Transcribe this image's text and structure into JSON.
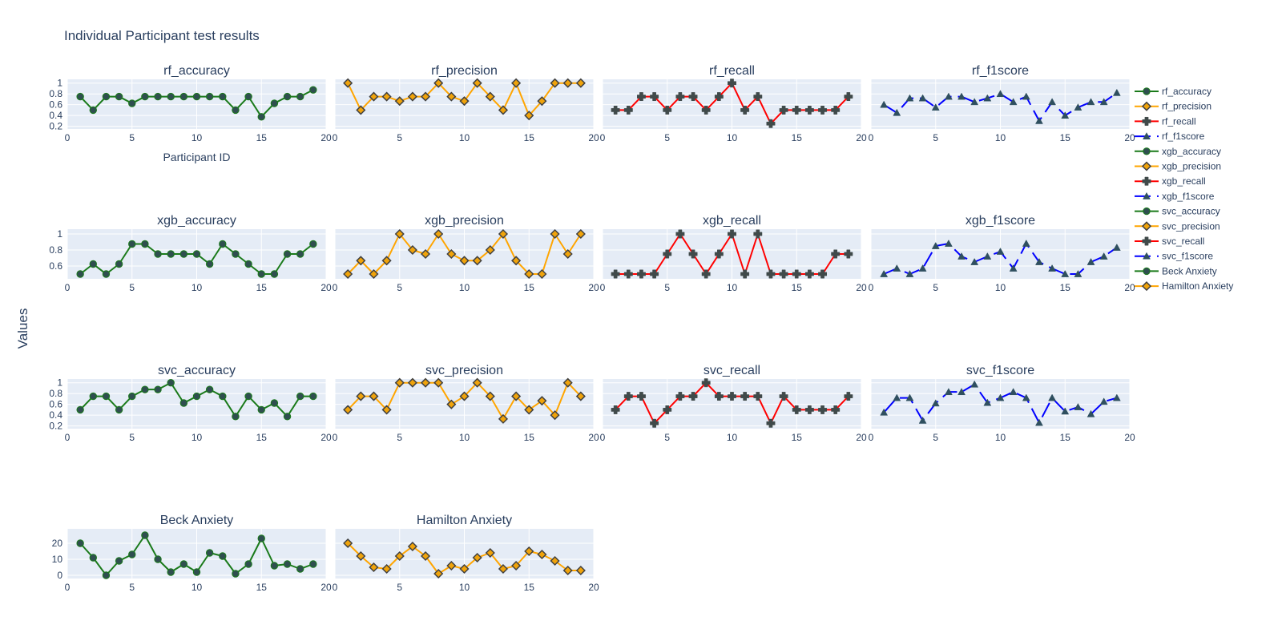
{
  "chart_data": {
    "type": "line",
    "title": "Individual Participant test results",
    "ylabel": "Values",
    "xlabel_first_panel": "Participant ID",
    "x": [
      1,
      2,
      3,
      4,
      5,
      6,
      7,
      8,
      9,
      10,
      11,
      12,
      13,
      14,
      15,
      16,
      17,
      18,
      19
    ],
    "xlim": [
      0,
      20
    ],
    "x_ticks": [
      0,
      5,
      10,
      15,
      20
    ],
    "grid": true,
    "legend_position": "right",
    "colors": {
      "plot_bg": "#e5ecf6",
      "grid": "#ffffff",
      "text": "#2a3f5f",
      "marker_fill": "#2f4f4f",
      "accuracy": "#1a7a1a",
      "precision": "#ffa500",
      "recall": "#ff0000",
      "f1score": "#0000ff"
    },
    "panels": [
      {
        "name": "rf_accuracy",
        "kind": "accuracy",
        "row": 0,
        "col": 0,
        "ylim": [
          0.15,
          1.07
        ],
        "yticks": [
          0.2,
          0.4,
          0.6,
          0.8,
          1
        ],
        "values": [
          0.75,
          0.5,
          0.75,
          0.75,
          0.625,
          0.75,
          0.75,
          0.75,
          0.75,
          0.75,
          0.75,
          0.75,
          0.5,
          0.75,
          0.375,
          0.625,
          0.75,
          0.75,
          0.875
        ]
      },
      {
        "name": "rf_precision",
        "kind": "precision",
        "row": 0,
        "col": 1,
        "ylim": [
          0.15,
          1.07
        ],
        "yticks": [],
        "values": [
          1.0,
          0.5,
          0.75,
          0.75,
          0.667,
          0.75,
          0.75,
          1.0,
          0.75,
          0.667,
          1.0,
          0.75,
          0.5,
          1.0,
          0.4,
          0.667,
          1.0,
          1.0,
          1.0
        ]
      },
      {
        "name": "rf_recall",
        "kind": "recall",
        "row": 0,
        "col": 2,
        "ylim": [
          0.15,
          1.07
        ],
        "yticks": [],
        "values": [
          0.5,
          0.5,
          0.75,
          0.75,
          0.5,
          0.75,
          0.75,
          0.5,
          0.75,
          1.0,
          0.5,
          0.75,
          0.25,
          0.5,
          0.5,
          0.5,
          0.5,
          0.5,
          0.75
        ]
      },
      {
        "name": "rf_f1score",
        "kind": "f1score",
        "row": 0,
        "col": 3,
        "ylim": [
          0.15,
          1.07
        ],
        "yticks": [],
        "values": [
          0.6,
          0.45,
          0.72,
          0.72,
          0.55,
          0.75,
          0.75,
          0.65,
          0.72,
          0.8,
          0.65,
          0.75,
          0.3,
          0.65,
          0.4,
          0.55,
          0.65,
          0.65,
          0.82
        ]
      },
      {
        "name": "xgb_accuracy",
        "kind": "accuracy",
        "row": 1,
        "col": 0,
        "ylim": [
          0.44,
          1.06
        ],
        "yticks": [
          0.6,
          0.8,
          1
        ],
        "values": [
          0.5,
          0.625,
          0.5,
          0.625,
          0.875,
          0.875,
          0.75,
          0.75,
          0.75,
          0.75,
          0.625,
          0.875,
          0.75,
          0.625,
          0.5,
          0.5,
          0.75,
          0.75,
          0.875
        ]
      },
      {
        "name": "xgb_precision",
        "kind": "precision",
        "row": 1,
        "col": 1,
        "ylim": [
          0.44,
          1.06
        ],
        "yticks": [],
        "values": [
          0.5,
          0.667,
          0.5,
          0.667,
          1.0,
          0.8,
          0.75,
          1.0,
          0.75,
          0.667,
          0.667,
          0.8,
          1.0,
          0.667,
          0.5,
          0.5,
          1.0,
          0.75,
          1.0
        ]
      },
      {
        "name": "xgb_recall",
        "kind": "recall",
        "row": 1,
        "col": 2,
        "ylim": [
          0.44,
          1.06
        ],
        "yticks": [],
        "values": [
          0.5,
          0.5,
          0.5,
          0.5,
          0.75,
          1.0,
          0.75,
          0.5,
          0.75,
          1.0,
          0.5,
          1.0,
          0.5,
          0.5,
          0.5,
          0.5,
          0.5,
          0.75,
          0.75
        ]
      },
      {
        "name": "xgb_f1score",
        "kind": "f1score",
        "row": 1,
        "col": 3,
        "ylim": [
          0.44,
          1.06
        ],
        "yticks": [],
        "values": [
          0.5,
          0.57,
          0.5,
          0.57,
          0.85,
          0.88,
          0.72,
          0.65,
          0.72,
          0.78,
          0.57,
          0.88,
          0.65,
          0.57,
          0.5,
          0.5,
          0.65,
          0.72,
          0.83
        ]
      },
      {
        "name": "svc_accuracy",
        "kind": "accuracy",
        "row": 2,
        "col": 0,
        "ylim": [
          0.15,
          1.07
        ],
        "yticks": [
          0.2,
          0.4,
          0.6,
          0.8,
          1
        ],
        "values": [
          0.5,
          0.75,
          0.75,
          0.5,
          0.75,
          0.875,
          0.875,
          1.0,
          0.625,
          0.75,
          0.875,
          0.75,
          0.375,
          0.75,
          0.5,
          0.625,
          0.375,
          0.75,
          0.75
        ]
      },
      {
        "name": "svc_precision",
        "kind": "precision",
        "row": 2,
        "col": 1,
        "ylim": [
          0.15,
          1.07
        ],
        "yticks": [],
        "values": [
          0.5,
          0.75,
          0.75,
          0.5,
          1.0,
          1.0,
          1.0,
          1.0,
          0.6,
          0.75,
          1.0,
          0.75,
          0.33,
          0.75,
          0.5,
          0.667,
          0.4,
          1.0,
          0.75
        ]
      },
      {
        "name": "svc_recall",
        "kind": "recall",
        "row": 2,
        "col": 2,
        "ylim": [
          0.15,
          1.07
        ],
        "yticks": [],
        "values": [
          0.5,
          0.75,
          0.75,
          0.25,
          0.5,
          0.75,
          0.75,
          1.0,
          0.75,
          0.75,
          0.75,
          0.75,
          0.25,
          0.75,
          0.5,
          0.5,
          0.5,
          0.5,
          0.75
        ]
      },
      {
        "name": "svc_f1score",
        "kind": "f1score",
        "row": 2,
        "col": 3,
        "ylim": [
          0.15,
          1.07
        ],
        "yticks": [],
        "values": [
          0.45,
          0.72,
          0.72,
          0.3,
          0.62,
          0.83,
          0.83,
          0.97,
          0.63,
          0.72,
          0.83,
          0.72,
          0.26,
          0.72,
          0.47,
          0.55,
          0.42,
          0.65,
          0.72
        ]
      },
      {
        "name": "Beck Anxiety",
        "kind": "accuracy",
        "row": 3,
        "col": 0,
        "ylim": [
          -2,
          29
        ],
        "yticks": [
          0,
          10,
          20
        ],
        "values": [
          20,
          11,
          0,
          9,
          13,
          25,
          10,
          2,
          7,
          2,
          14,
          12,
          1,
          7,
          23,
          6,
          7,
          4,
          7
        ]
      },
      {
        "name": "Hamilton Anxiety",
        "kind": "precision",
        "row": 3,
        "col": 1,
        "ylim": [
          -2,
          29
        ],
        "yticks": [],
        "values": [
          20,
          12,
          5,
          4,
          12,
          18,
          12,
          1,
          6,
          4,
          11,
          14,
          4,
          6,
          15,
          13,
          9,
          3,
          3
        ]
      }
    ],
    "legend": [
      {
        "label": "rf_accuracy",
        "kind": "accuracy"
      },
      {
        "label": "rf_precision",
        "kind": "precision"
      },
      {
        "label": "rf_recall",
        "kind": "recall"
      },
      {
        "label": "rf_f1score",
        "kind": "f1score"
      },
      {
        "label": "xgb_accuracy",
        "kind": "accuracy"
      },
      {
        "label": "xgb_precision",
        "kind": "precision"
      },
      {
        "label": "xgb_recall",
        "kind": "recall"
      },
      {
        "label": "xgb_f1score",
        "kind": "f1score"
      },
      {
        "label": "svc_accuracy",
        "kind": "accuracy"
      },
      {
        "label": "svc_precision",
        "kind": "precision"
      },
      {
        "label": "svc_recall",
        "kind": "recall"
      },
      {
        "label": "svc_f1score",
        "kind": "f1score"
      },
      {
        "label": "Beck Anxiety",
        "kind": "accuracy"
      },
      {
        "label": "Hamilton Anxiety",
        "kind": "precision"
      }
    ]
  }
}
